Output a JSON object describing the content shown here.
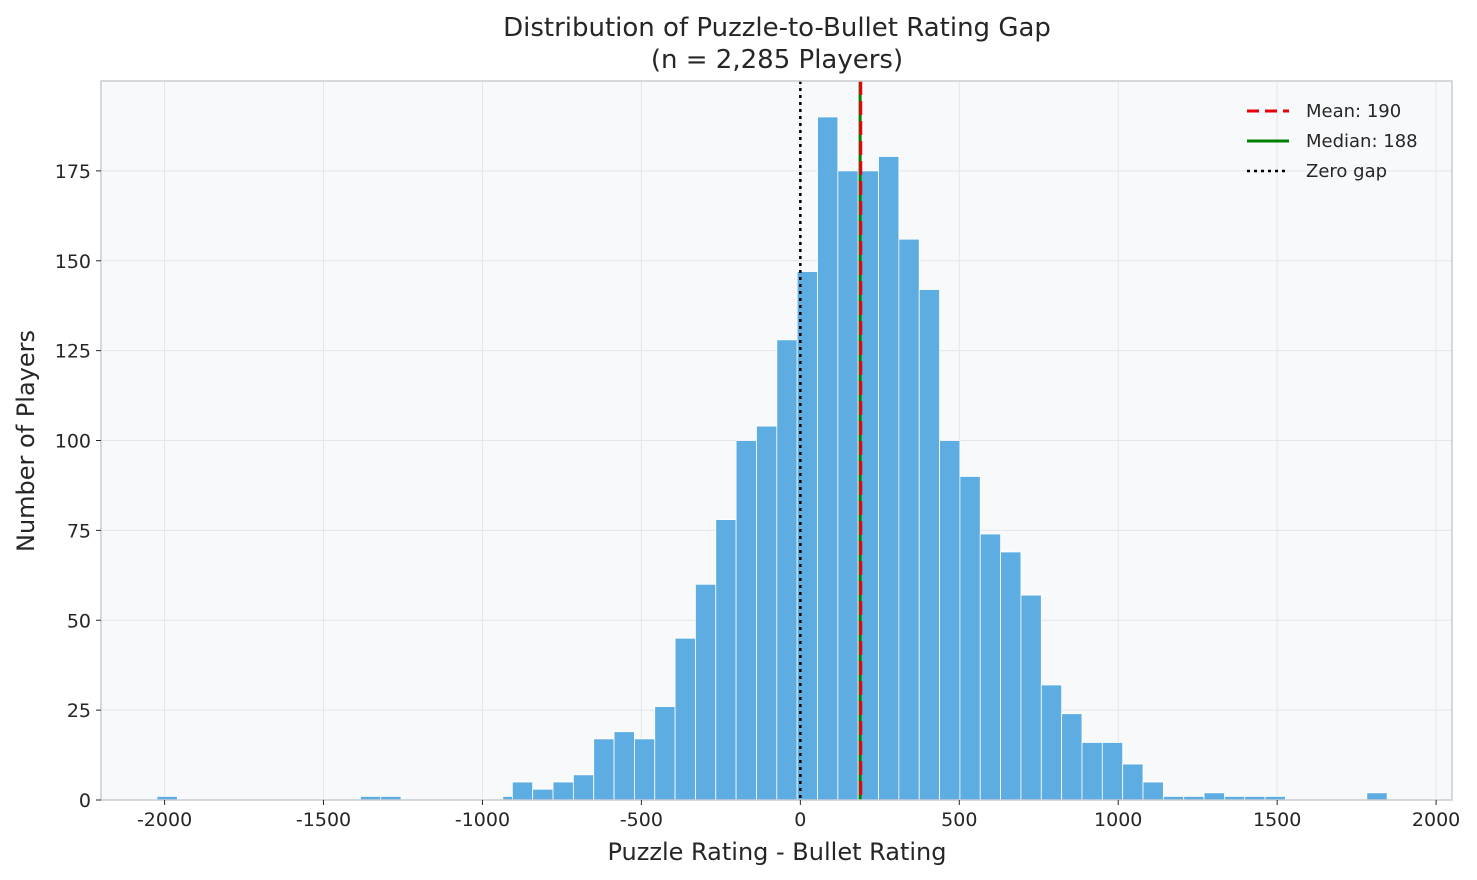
{
  "chart_data": {
    "type": "bar",
    "title": "Distribution of Puzzle-to-Bullet Rating Gap",
    "subtitle": "(n = 2,285 Players)",
    "xlabel": "Puzzle Rating - Bullet Rating",
    "ylabel": "Number of Players",
    "xlim": [
      -2200,
      2050
    ],
    "ylim": [
      0,
      200
    ],
    "x_ticks": [
      -2000,
      -1500,
      -1000,
      -500,
      0,
      500,
      1000,
      1500,
      2000
    ],
    "x_tick_labels": [
      "-2000",
      "-1500",
      "-1000",
      "-500",
      "0",
      "500",
      "1000",
      "1500",
      "2000"
    ],
    "y_ticks": [
      0,
      25,
      50,
      75,
      100,
      125,
      150,
      175
    ],
    "y_tick_labels": [
      "0",
      "25",
      "50",
      "75",
      "100",
      "125",
      "150",
      "175"
    ],
    "grid": true,
    "legend_position": "top-right",
    "bin_width": 64,
    "bins": [
      {
        "x0": -2024,
        "count": 1
      },
      {
        "x0": -1960,
        "count": 0
      },
      {
        "x0": -1896,
        "count": 0
      },
      {
        "x0": -1832,
        "count": 0
      },
      {
        "x0": -1768,
        "count": 0
      },
      {
        "x0": -1704,
        "count": 0
      },
      {
        "x0": -1640,
        "count": 0
      },
      {
        "x0": -1576,
        "count": 0
      },
      {
        "x0": -1512,
        "count": 0
      },
      {
        "x0": -1448,
        "count": 0
      },
      {
        "x0": -1384,
        "count": 1
      },
      {
        "x0": -1320,
        "count": 1
      },
      {
        "x0": -1256,
        "count": 0
      },
      {
        "x0": -1192,
        "count": 0
      },
      {
        "x0": -1128,
        "count": 0
      },
      {
        "x0": -1064,
        "count": 0
      },
      {
        "x0": -1000,
        "count": 0
      },
      {
        "x0": -936,
        "count": 1
      },
      {
        "x0": -906,
        "count": 5
      },
      {
        "x0": -842,
        "count": 3
      },
      {
        "x0": -778,
        "count": 5
      },
      {
        "x0": -714,
        "count": 7
      },
      {
        "x0": -650,
        "count": 17
      },
      {
        "x0": -586,
        "count": 19
      },
      {
        "x0": -522,
        "count": 17
      },
      {
        "x0": -458,
        "count": 26
      },
      {
        "x0": -394,
        "count": 45
      },
      {
        "x0": -330,
        "count": 60
      },
      {
        "x0": -266,
        "count": 78
      },
      {
        "x0": -202,
        "count": 100
      },
      {
        "x0": -138,
        "count": 104
      },
      {
        "x0": -74,
        "count": 128
      },
      {
        "x0": -10,
        "count": 147
      },
      {
        "x0": 54,
        "count": 190
      },
      {
        "x0": 118,
        "count": 175
      },
      {
        "x0": 182,
        "count": 175
      },
      {
        "x0": 246,
        "count": 179
      },
      {
        "x0": 310,
        "count": 156
      },
      {
        "x0": 374,
        "count": 142
      },
      {
        "x0": 438,
        "count": 100
      },
      {
        "x0": 502,
        "count": 90
      },
      {
        "x0": 566,
        "count": 74
      },
      {
        "x0": 630,
        "count": 69
      },
      {
        "x0": 694,
        "count": 57
      },
      {
        "x0": 758,
        "count": 32
      },
      {
        "x0": 822,
        "count": 24
      },
      {
        "x0": 886,
        "count": 16
      },
      {
        "x0": 950,
        "count": 16
      },
      {
        "x0": 1014,
        "count": 10
      },
      {
        "x0": 1078,
        "count": 5
      },
      {
        "x0": 1142,
        "count": 1
      },
      {
        "x0": 1206,
        "count": 1
      },
      {
        "x0": 1270,
        "count": 2
      },
      {
        "x0": 1334,
        "count": 1
      },
      {
        "x0": 1398,
        "count": 1
      },
      {
        "x0": 1462,
        "count": 1
      },
      {
        "x0": 1526,
        "count": 0
      },
      {
        "x0": 1590,
        "count": 0
      },
      {
        "x0": 1654,
        "count": 0
      },
      {
        "x0": 1718,
        "count": 0
      },
      {
        "x0": 1782,
        "count": 2
      }
    ],
    "reference_lines": [
      {
        "label": "Mean: 190",
        "value": 190,
        "color": "#e8000b",
        "style": "dashed"
      },
      {
        "label": "Median: 188",
        "value": 188,
        "color": "#008000",
        "style": "solid"
      },
      {
        "label": "Zero gap",
        "value": 0,
        "color": "#000000",
        "style": "dotted"
      }
    ],
    "colors": {
      "bar_fill": "#5dade2",
      "bar_edge": "#ffffff",
      "plot_background": "#f8f9fb",
      "grid": "#e4e6ea",
      "frame": "#c8ccd2"
    }
  }
}
